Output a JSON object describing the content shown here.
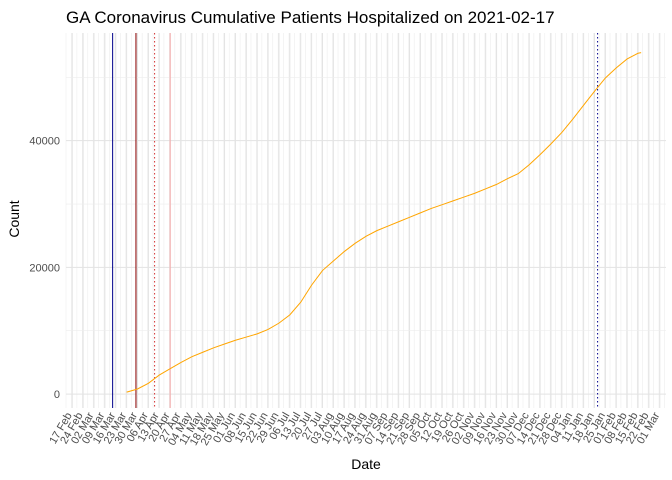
{
  "chart_data": {
    "type": "line",
    "title": "GA Coronavirus Cumulative Patients Hospitalized on 2021-02-17",
    "xlabel": "Date",
    "ylabel": "Count",
    "xlim": [
      "2020-02-13",
      "2021-03-05"
    ],
    "ylim": [
      -2200,
      57000
    ],
    "yticks": [
      0,
      20000,
      40000
    ],
    "ytick_labels": [
      "0",
      "20000",
      "40000"
    ],
    "xticks": [
      "2020-02-17",
      "2020-02-24",
      "2020-03-02",
      "2020-03-09",
      "2020-03-16",
      "2020-03-23",
      "2020-03-30",
      "2020-04-06",
      "2020-04-13",
      "2020-04-20",
      "2020-04-27",
      "2020-05-04",
      "2020-05-11",
      "2020-05-18",
      "2020-05-25",
      "2020-06-01",
      "2020-06-08",
      "2020-06-15",
      "2020-06-22",
      "2020-06-29",
      "2020-07-06",
      "2020-07-13",
      "2020-07-20",
      "2020-07-27",
      "2020-08-03",
      "2020-08-10",
      "2020-08-17",
      "2020-08-24",
      "2020-08-31",
      "2020-09-07",
      "2020-09-14",
      "2020-09-21",
      "2020-09-28",
      "2020-10-05",
      "2020-10-12",
      "2020-10-19",
      "2020-10-26",
      "2020-11-02",
      "2020-11-09",
      "2020-11-16",
      "2020-11-23",
      "2020-11-30",
      "2020-12-07",
      "2020-12-14",
      "2020-12-21",
      "2020-12-28",
      "2021-01-04",
      "2021-01-11",
      "2021-01-18",
      "2021-01-25",
      "2021-02-01",
      "2021-02-08",
      "2021-02-15",
      "2021-02-22",
      "2021-03-01"
    ],
    "xtick_labels": [
      "17 Feb",
      "24 Feb",
      "02 Mar",
      "09 Mar",
      "16 Mar",
      "23 Mar",
      "30 Mar",
      "06 Apr",
      "13 Apr",
      "20 Apr",
      "27 Apr",
      "04 May",
      "11 May",
      "18 May",
      "25 May",
      "01 Jun",
      "08 Jun",
      "15 Jun",
      "22 Jun",
      "29 Jun",
      "06 Jul",
      "13 Jul",
      "20 Jul",
      "27 Jul",
      "03 Aug",
      "10 Aug",
      "17 Aug",
      "24 Aug",
      "31 Aug",
      "07 Sep",
      "14 Sep",
      "21 Sep",
      "28 Sep",
      "05 Oct",
      "12 Oct",
      "19 Oct",
      "26 Oct",
      "02 Nov",
      "09 Nov",
      "16 Nov",
      "23 Nov",
      "30 Nov",
      "07 Dec",
      "14 Dec",
      "21 Dec",
      "28 Dec",
      "04 Jan",
      "11 Jan",
      "18 Jan",
      "25 Jan",
      "01 Feb",
      "08 Feb",
      "15 Feb",
      "22 Feb",
      "01 Mar"
    ],
    "grid": true,
    "legend": "none",
    "series": [
      {
        "color": "#FFA500",
        "points": [
          [
            "2020-03-23",
            300
          ],
          [
            "2020-03-30",
            800
          ],
          [
            "2020-04-06",
            1700
          ],
          [
            "2020-04-13",
            3000
          ],
          [
            "2020-04-20",
            4000
          ],
          [
            "2020-04-27",
            5000
          ],
          [
            "2020-05-04",
            5900
          ],
          [
            "2020-05-11",
            6600
          ],
          [
            "2020-05-18",
            7300
          ],
          [
            "2020-05-25",
            7900
          ],
          [
            "2020-06-01",
            8500
          ],
          [
            "2020-06-08",
            9000
          ],
          [
            "2020-06-15",
            9500
          ],
          [
            "2020-06-22",
            10200
          ],
          [
            "2020-06-29",
            11200
          ],
          [
            "2020-07-06",
            12500
          ],
          [
            "2020-07-13",
            14500
          ],
          [
            "2020-07-20",
            17200
          ],
          [
            "2020-07-27",
            19500
          ],
          [
            "2020-08-03",
            21000
          ],
          [
            "2020-08-10",
            22500
          ],
          [
            "2020-08-17",
            23800
          ],
          [
            "2020-08-24",
            24900
          ],
          [
            "2020-08-31",
            25800
          ],
          [
            "2020-09-07",
            26500
          ],
          [
            "2020-09-14",
            27200
          ],
          [
            "2020-09-21",
            27900
          ],
          [
            "2020-09-28",
            28600
          ],
          [
            "2020-10-05",
            29300
          ],
          [
            "2020-10-12",
            29900
          ],
          [
            "2020-10-19",
            30500
          ],
          [
            "2020-10-26",
            31100
          ],
          [
            "2020-11-02",
            31700
          ],
          [
            "2020-11-09",
            32400
          ],
          [
            "2020-11-16",
            33100
          ],
          [
            "2020-11-23",
            34000
          ],
          [
            "2020-11-30",
            34800
          ],
          [
            "2020-12-07",
            36200
          ],
          [
            "2020-12-14",
            37800
          ],
          [
            "2020-12-21",
            39500
          ],
          [
            "2020-12-28",
            41300
          ],
          [
            "2021-01-04",
            43400
          ],
          [
            "2021-01-11",
            45600
          ],
          [
            "2021-01-18",
            47800
          ],
          [
            "2021-01-25",
            49900
          ],
          [
            "2021-02-01",
            51500
          ],
          [
            "2021-02-08",
            52900
          ],
          [
            "2021-02-15",
            53800
          ],
          [
            "2021-02-17",
            53900
          ]
        ]
      }
    ],
    "vlines": [
      {
        "x": "2020-03-14",
        "color": "#00008B",
        "style": "solid"
      },
      {
        "x": "2020-03-29",
        "color": "#8B0000",
        "style": "solid"
      },
      {
        "x": "2020-04-10",
        "color": "#D32F2F",
        "style": "dotted"
      },
      {
        "x": "2020-04-20",
        "color": "#F4A6A6",
        "style": "solid"
      },
      {
        "x": "2021-01-20",
        "color": "#00008B",
        "style": "dotted"
      }
    ]
  }
}
